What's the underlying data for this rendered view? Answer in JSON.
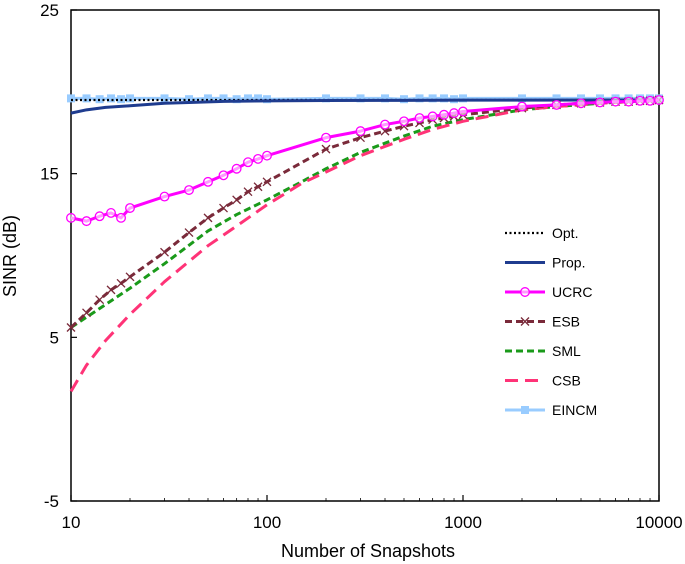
{
  "chart_data": {
    "type": "line",
    "title": "",
    "xlabel": "Number of Snapshots",
    "ylabel": "SINR (dB)",
    "xscale": "log",
    "xlim": [
      10,
      10000
    ],
    "ylim": [
      -5,
      25
    ],
    "x_ticks": [
      10,
      100,
      1000,
      10000
    ],
    "x_tick_labels": [
      "10",
      "100",
      "1000",
      "10000"
    ],
    "y_ticks": [
      -5,
      5,
      15,
      25
    ],
    "y_tick_labels": [
      "-5",
      "5",
      "15",
      "25"
    ],
    "grid": false,
    "legend_position": "right",
    "series": [
      {
        "name": "Opt.",
        "color": "#000000",
        "style": "dotted",
        "marker": "none",
        "x": [
          10,
          10000
        ],
        "y": [
          19.5,
          19.5
        ]
      },
      {
        "name": "Prop.",
        "color": "#1f3c8f",
        "style": "solid",
        "marker": "none",
        "x": [
          10,
          12,
          15,
          20,
          30,
          40,
          60,
          100,
          200,
          500,
          1000,
          10000
        ],
        "y": [
          18.7,
          18.9,
          19.05,
          19.15,
          19.3,
          19.35,
          19.42,
          19.45,
          19.47,
          19.48,
          19.49,
          19.5
        ]
      },
      {
        "name": "UCRC",
        "color": "#ff00ff",
        "style": "solid",
        "marker": "circle",
        "x": [
          10,
          12,
          14,
          16,
          18,
          20,
          30,
          40,
          50,
          60,
          70,
          80,
          90,
          100,
          200,
          300,
          400,
          500,
          600,
          700,
          800,
          900,
          1000,
          2000,
          3000,
          4000,
          5000,
          6000,
          7000,
          8000,
          9000,
          10000
        ],
        "y": [
          12.3,
          12.1,
          12.4,
          12.6,
          12.3,
          12.9,
          13.6,
          14.0,
          14.5,
          14.9,
          15.3,
          15.7,
          15.9,
          16.1,
          17.2,
          17.6,
          18.0,
          18.2,
          18.4,
          18.5,
          18.6,
          18.7,
          18.8,
          19.1,
          19.2,
          19.3,
          19.35,
          19.4,
          19.4,
          19.45,
          19.45,
          19.5
        ]
      },
      {
        "name": "ESB",
        "color": "#7a2a3a",
        "style": "dashed",
        "marker": "x",
        "x": [
          10,
          12,
          14,
          16,
          18,
          20,
          30,
          40,
          50,
          60,
          70,
          80,
          90,
          100,
          200,
          300,
          400,
          500,
          600,
          700,
          800,
          900,
          1000,
          2000,
          3000,
          4000,
          5000,
          6000,
          7000,
          8000,
          9000,
          10000
        ],
        "y": [
          5.6,
          6.5,
          7.3,
          7.9,
          8.3,
          8.7,
          10.2,
          11.4,
          12.3,
          12.9,
          13.4,
          13.9,
          14.2,
          14.5,
          16.5,
          17.2,
          17.6,
          17.9,
          18.1,
          18.3,
          18.4,
          18.5,
          18.6,
          19.0,
          19.2,
          19.3,
          19.35,
          19.4,
          19.4,
          19.45,
          19.45,
          19.5
        ]
      },
      {
        "name": "SML",
        "color": "#1a9a1a",
        "style": "dashed",
        "marker": "none",
        "x": [
          10,
          15,
          20,
          30,
          50,
          70,
          100,
          150,
          200,
          300,
          500,
          700,
          1000,
          2000,
          3000,
          5000,
          10000
        ],
        "y": [
          5.6,
          7.0,
          8.0,
          9.5,
          11.5,
          12.5,
          13.4,
          14.5,
          15.3,
          16.3,
          17.3,
          17.9,
          18.3,
          18.9,
          19.1,
          19.3,
          19.5
        ]
      },
      {
        "name": "CSB",
        "color": "#ff3377",
        "style": "longdash",
        "marker": "none",
        "x": [
          10,
          12,
          15,
          20,
          30,
          50,
          70,
          100,
          150,
          200,
          300,
          500,
          700,
          1000,
          2000,
          3000,
          5000,
          10000
        ],
        "y": [
          1.7,
          3.3,
          4.8,
          6.4,
          8.4,
          10.6,
          11.8,
          13.1,
          14.4,
          15.1,
          16.1,
          17.1,
          17.7,
          18.2,
          18.9,
          19.1,
          19.3,
          19.5
        ]
      },
      {
        "name": "EINCM",
        "color": "#99ccff",
        "style": "solid",
        "marker": "square",
        "x": [
          10,
          12,
          14,
          16,
          18,
          20,
          30,
          40,
          50,
          60,
          70,
          80,
          90,
          100,
          200,
          300,
          400,
          500,
          600,
          700,
          800,
          900,
          1000,
          2000,
          3000,
          4000,
          5000,
          6000,
          7000,
          8000,
          9000,
          10000
        ],
        "y": [
          19.6,
          19.6,
          19.55,
          19.6,
          19.55,
          19.6,
          19.6,
          19.55,
          19.6,
          19.6,
          19.55,
          19.6,
          19.6,
          19.55,
          19.6,
          19.6,
          19.6,
          19.55,
          19.6,
          19.6,
          19.6,
          19.55,
          19.6,
          19.6,
          19.6,
          19.6,
          19.6,
          19.6,
          19.6,
          19.6,
          19.6,
          19.6
        ]
      }
    ]
  }
}
